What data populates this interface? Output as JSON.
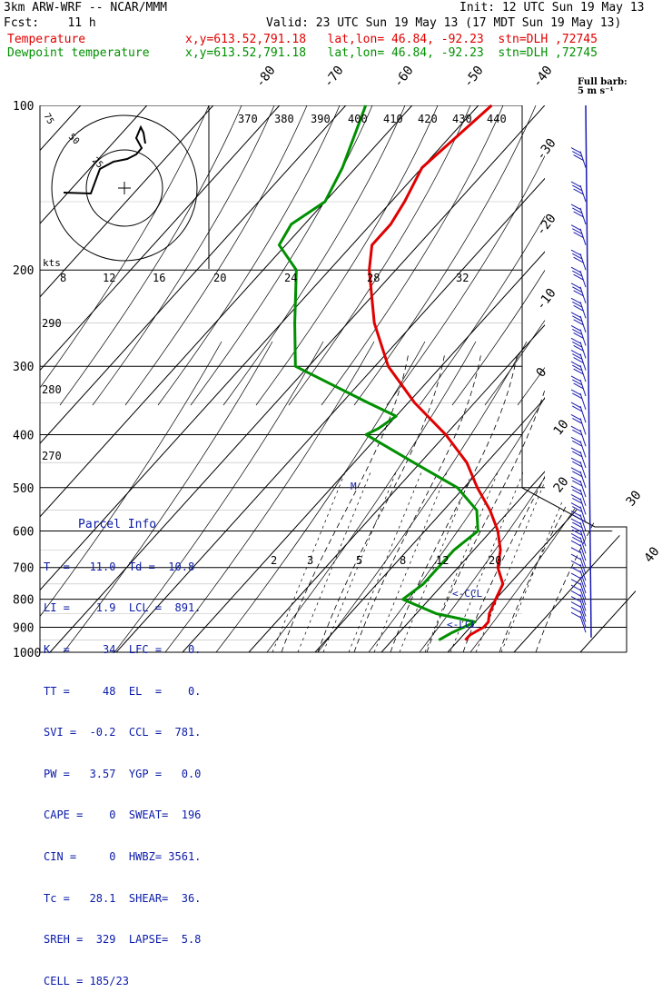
{
  "header": {
    "model": "3km ARW-WRF -- NCAR/MMM",
    "init": "Init: 12 UTC Sun 19 May 13",
    "fcst": "Fcst:    11 h",
    "valid": "Valid: 23 UTC Sun 19 May 13 (17 MDT Sun 19 May 13)"
  },
  "legend": [
    {
      "name": "Temperature",
      "info": "x,y=613.52,791.18   lat,lon= 46.84, -92.23  stn=DLH ,72745",
      "color": "#e00000"
    },
    {
      "name": "Dewpoint temperature",
      "info": "x,y=613.52,791.18   lat,lon= 46.84, -92.23  stn=DLH ,72745",
      "color": "#009000"
    }
  ],
  "full_barb": "Full barb:",
  "full_barb_unit": "5 m s⁻¹",
  "hodograph": {
    "unit": "kts",
    "rings": [
      "75",
      "50",
      "25"
    ]
  },
  "parcel_info": {
    "title": "Parcel Info",
    "lines": [
      "T  =   11.0  Td =  10.8",
      "LI =    1.9  LCL =  891.",
      "K  =     34  LFC =    0.",
      "TT =     48  EL  =    0.",
      "SVI =  -0.2  CCL =  781.",
      "PW =   3.57  YGP =   0.0",
      "CAPE =    0  SWEAT=  196",
      "CIN =     0  HWBZ= 3561.",
      "Tc =   28.1  SHEAR=  36.",
      "SREH =  329  LAPSE=  5.8",
      "CELL = 185/23"
    ]
  },
  "marks": {
    "m": "M",
    "ccl": "<-CCL",
    "lcl": "<-LCL"
  },
  "chart_data": {
    "type": "line",
    "title": "",
    "pressure_levels": [
      100,
      200,
      300,
      400,
      500,
      600,
      700,
      800,
      900,
      1000
    ],
    "temperature_ticks": [
      -80,
      -70,
      -60,
      -50,
      -40,
      -30,
      -20,
      -10,
      0,
      10,
      20,
      30,
      40
    ],
    "theta_ticks": [
      370,
      380,
      390,
      400,
      410,
      420,
      430,
      440
    ],
    "theta_low_ticks": [
      290,
      280,
      270
    ],
    "mixing_ratio_ticks_top": [
      8,
      12,
      16,
      20,
      24,
      28,
      32
    ],
    "mixing_ratio_ticks_low": [
      2,
      3,
      5,
      8,
      12,
      20
    ],
    "series": [
      {
        "name": "Temperature",
        "color": "#e00000",
        "points": [
          [
            100,
            -58
          ],
          [
            130,
            -60
          ],
          [
            150,
            -58
          ],
          [
            165,
            -57
          ],
          [
            180,
            -57
          ],
          [
            200,
            -54
          ],
          [
            250,
            -46
          ],
          [
            300,
            -38
          ],
          [
            350,
            -29
          ],
          [
            400,
            -20
          ],
          [
            450,
            -13
          ],
          [
            500,
            -8
          ],
          [
            550,
            -3
          ],
          [
            600,
            1
          ],
          [
            650,
            4
          ],
          [
            700,
            6
          ],
          [
            750,
            9
          ],
          [
            800,
            10
          ],
          [
            850,
            11
          ],
          [
            880,
            12
          ],
          [
            900,
            12
          ],
          [
            930,
            11
          ],
          [
            950,
            11
          ]
        ]
      },
      {
        "name": "Dewpoint temperature",
        "color": "#009000",
        "points": [
          [
            100,
            -77
          ],
          [
            130,
            -72
          ],
          [
            150,
            -70
          ],
          [
            165,
            -72
          ],
          [
            180,
            -71
          ],
          [
            200,
            -65
          ],
          [
            250,
            -58
          ],
          [
            300,
            -52
          ],
          [
            350,
            -36
          ],
          [
            370,
            -30
          ],
          [
            390,
            -31
          ],
          [
            400,
            -32
          ],
          [
            450,
            -21
          ],
          [
            500,
            -11
          ],
          [
            550,
            -5
          ],
          [
            600,
            -2
          ],
          [
            650,
            -3
          ],
          [
            700,
            -3
          ],
          [
            750,
            -3
          ],
          [
            800,
            -4
          ],
          [
            850,
            3
          ],
          [
            880,
            10
          ],
          [
            900,
            9
          ],
          [
            920,
            8
          ],
          [
            950,
            7
          ]
        ]
      }
    ],
    "barb_levels_hpa": [
      130,
      150,
      165,
      180,
      200,
      215,
      230,
      245,
      260,
      275,
      290,
      305,
      320,
      340,
      360,
      380,
      400,
      420,
      440,
      460,
      480,
      500,
      520,
      540,
      560,
      580,
      600,
      620,
      640,
      660,
      680,
      700,
      720,
      740,
      760,
      780,
      800,
      820,
      840,
      860,
      880,
      900,
      920
    ]
  }
}
